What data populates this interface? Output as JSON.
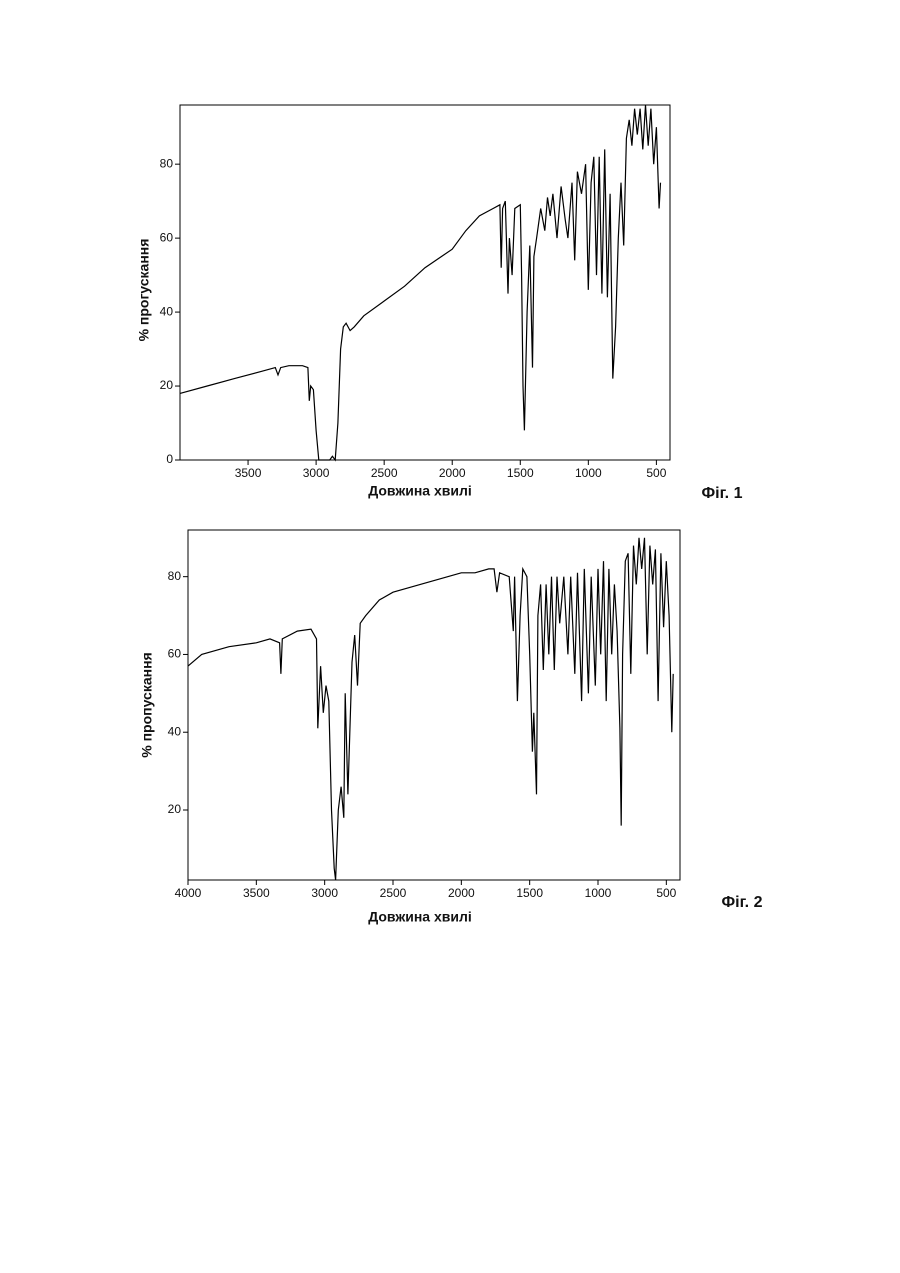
{
  "chart_data": [
    {
      "type": "line",
      "x_label": "Довжина хвилі",
      "y_label": "% прогускання",
      "figure_label": "Фіг. 1",
      "color": "#000000",
      "xlim": [
        4000,
        400
      ],
      "ylim": [
        0,
        96
      ],
      "xticks": [
        3500,
        3000,
        2500,
        2000,
        1500,
        1000,
        500
      ],
      "yticks": [
        0,
        20,
        40,
        60,
        80
      ],
      "x": [
        4000,
        3800,
        3600,
        3400,
        3300,
        3280,
        3260,
        3200,
        3100,
        3060,
        3050,
        3040,
        3020,
        3000,
        2980,
        2950,
        2900,
        2880,
        2860,
        2840,
        2820,
        2800,
        2780,
        2750,
        2720,
        2650,
        2500,
        2350,
        2200,
        2000,
        1900,
        1800,
        1700,
        1650,
        1640,
        1630,
        1610,
        1590,
        1580,
        1560,
        1540,
        1500,
        1490,
        1480,
        1470,
        1450,
        1430,
        1410,
        1400,
        1380,
        1350,
        1320,
        1300,
        1280,
        1260,
        1230,
        1200,
        1170,
        1150,
        1120,
        1100,
        1080,
        1050,
        1020,
        1000,
        980,
        960,
        940,
        920,
        900,
        880,
        860,
        840,
        820,
        800,
        780,
        760,
        740,
        720,
        700,
        680,
        660,
        640,
        620,
        600,
        580,
        560,
        540,
        520,
        500,
        480,
        470
      ],
      "values": [
        18,
        20,
        22,
        24,
        25,
        23,
        25,
        25.5,
        25.5,
        25,
        16,
        20,
        19,
        8,
        0,
        0,
        0,
        1,
        0,
        10,
        30,
        36,
        37,
        35,
        36,
        39,
        43,
        47,
        52,
        57,
        62,
        66,
        68,
        69,
        52,
        68,
        70,
        45,
        60,
        50,
        68,
        69,
        50,
        20,
        8,
        40,
        58,
        25,
        55,
        60,
        68,
        62,
        71,
        66,
        72,
        60,
        74,
        65,
        60,
        75,
        54,
        78,
        72,
        80,
        46,
        75,
        82,
        50,
        82,
        45,
        84,
        44,
        72,
        22,
        36,
        60,
        75,
        58,
        87,
        92,
        85,
        95,
        88,
        95,
        84,
        96,
        85,
        95,
        80,
        90,
        68,
        75
      ]
    },
    {
      "type": "line",
      "x_label": "Довжина хвилі",
      "y_label": "% пропускання",
      "figure_label": "Фіг. 2",
      "color": "#000000",
      "xlim": [
        4000,
        400
      ],
      "ylim": [
        2,
        92
      ],
      "xticks": [
        4000,
        3500,
        3000,
        2500,
        2000,
        1500,
        1000,
        500
      ],
      "yticks": [
        20,
        40,
        60,
        80
      ],
      "x": [
        4000,
        3900,
        3700,
        3500,
        3400,
        3330,
        3320,
        3310,
        3200,
        3100,
        3060,
        3050,
        3030,
        3010,
        2990,
        2970,
        2950,
        2930,
        2920,
        2900,
        2880,
        2860,
        2850,
        2830,
        2800,
        2780,
        2760,
        2740,
        2700,
        2600,
        2500,
        2300,
        2100,
        2000,
        1900,
        1800,
        1760,
        1740,
        1720,
        1650,
        1620,
        1610,
        1590,
        1570,
        1550,
        1520,
        1500,
        1480,
        1470,
        1450,
        1440,
        1420,
        1400,
        1380,
        1360,
        1340,
        1320,
        1300,
        1280,
        1250,
        1220,
        1200,
        1170,
        1150,
        1120,
        1100,
        1070,
        1050,
        1020,
        1000,
        980,
        960,
        940,
        920,
        900,
        880,
        860,
        840,
        830,
        820,
        800,
        780,
        760,
        740,
        720,
        700,
        680,
        660,
        640,
        620,
        600,
        580,
        560,
        540,
        520,
        500,
        480,
        460,
        450
      ],
      "values": [
        57,
        60,
        62,
        63,
        64,
        63,
        55,
        64,
        66,
        66.5,
        64,
        41,
        57,
        45,
        52,
        48,
        20,
        5,
        2,
        20,
        26,
        18,
        50,
        24,
        58,
        65,
        52,
        68,
        70,
        74,
        76,
        78,
        80,
        81,
        81,
        82,
        82,
        76,
        81,
        80,
        66,
        80,
        48,
        70,
        82,
        80,
        60,
        35,
        45,
        24,
        70,
        78,
        56,
        78,
        60,
        80,
        56,
        80,
        68,
        80,
        60,
        80,
        55,
        81,
        48,
        82,
        50,
        80,
        52,
        82,
        60,
        84,
        48,
        82,
        60,
        78,
        66,
        41,
        16,
        60,
        84,
        86,
        55,
        88,
        78,
        90,
        82,
        90,
        60,
        88,
        78,
        87,
        48,
        86,
        67,
        84,
        70,
        40,
        55
      ]
    }
  ]
}
